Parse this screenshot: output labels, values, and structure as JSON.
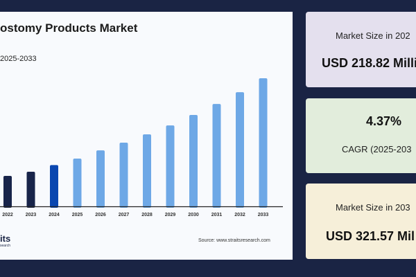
{
  "chart_data": {
    "type": "bar",
    "title": "ostomy Products Market",
    "subtitle": "2025-2033",
    "categories": [
      "2022",
      "2023",
      "2024",
      "2025",
      "2026",
      "2027",
      "2028",
      "2029",
      "2030",
      "2031",
      "2032",
      "2033"
    ],
    "values": [
      206.0,
      211.0,
      218.82,
      226.5,
      236.3,
      245.4,
      255.2,
      265.8,
      278.1,
      291.2,
      305.1,
      321.57
    ],
    "ylim": [
      170,
      321.57
    ],
    "colors": {
      "historic": "#18244a",
      "base_year": "#0b47b0",
      "forecast": "#6ea8e6"
    },
    "grid": false,
    "source": "Source: www.straitsresearch.com"
  },
  "logo": {
    "text": "its",
    "sub": "search"
  },
  "cards": [
    {
      "label": "Market Size in 202",
      "value": "USD 218.82 Milli",
      "color": "#e4e0ee"
    },
    {
      "value": "4.37%",
      "label": "CAGR (2025-203",
      "color": "#e2eddc"
    },
    {
      "label": "Market Size in 203",
      "value": "USD 321.57 Mil",
      "color": "#f6efd9"
    }
  ]
}
